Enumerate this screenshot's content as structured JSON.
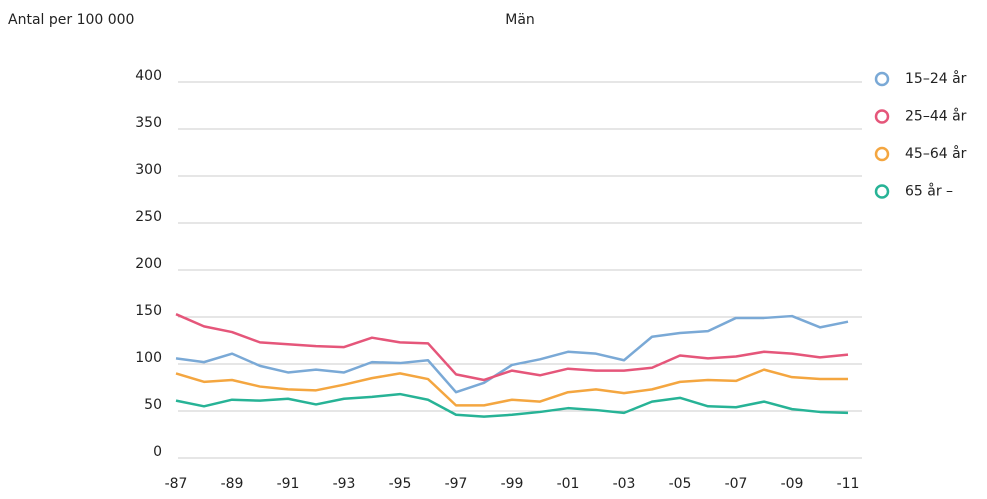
{
  "chart_data": {
    "type": "line",
    "title": "Män",
    "ylabel": "Antal per 100 000",
    "categories": [
      "-87",
      null,
      "-89",
      null,
      "-91",
      null,
      "-93",
      null,
      "-95",
      null,
      "-97",
      null,
      "-99",
      null,
      "-01",
      null,
      "-03",
      null,
      "-05",
      null,
      "-07",
      null,
      "-09",
      null,
      "-11"
    ],
    "series": [
      {
        "name": "15–24 år",
        "color": "#7aa9d6",
        "values": [
          106,
          102,
          111,
          98,
          91,
          94,
          91,
          102,
          101,
          104,
          70,
          80,
          99,
          105,
          113,
          111,
          104,
          129,
          133,
          135,
          149,
          149,
          151,
          139,
          145
        ]
      },
      {
        "name": "25–44 år",
        "color": "#e5567a",
        "values": [
          153,
          140,
          134,
          123,
          121,
          119,
          118,
          128,
          123,
          122,
          89,
          83,
          93,
          88,
          95,
          93,
          93,
          96,
          109,
          106,
          108,
          113,
          111,
          107,
          110
        ]
      },
      {
        "name": "45–64 år",
        "color": "#f4a640",
        "values": [
          90,
          81,
          83,
          76,
          73,
          72,
          78,
          85,
          90,
          84,
          56,
          56,
          62,
          60,
          70,
          73,
          69,
          73,
          81,
          83,
          82,
          94,
          86,
          84,
          84
        ]
      },
      {
        "name": "65 år –",
        "color": "#27b396",
        "values": [
          61,
          55,
          62,
          61,
          63,
          57,
          63,
          65,
          68,
          62,
          46,
          44,
          46,
          49,
          53,
          51,
          48,
          60,
          64,
          55,
          54,
          60,
          52,
          49,
          48
        ]
      }
    ],
    "ylim": [
      0,
      400
    ],
    "yticks": [
      0,
      50,
      100,
      150,
      200,
      250,
      300,
      350,
      400
    ],
    "grid": true,
    "legend": "right"
  }
}
